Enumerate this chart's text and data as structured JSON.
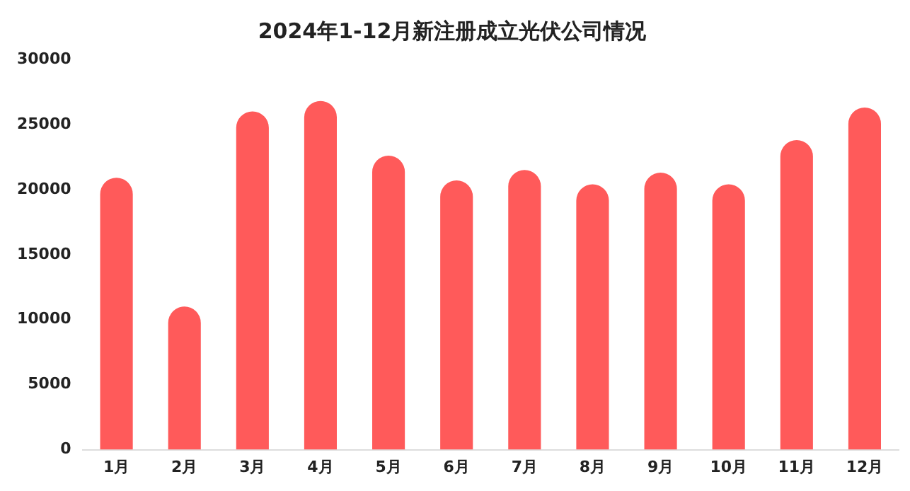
{
  "chart_data": {
    "type": "bar",
    "title": "2024年1-12月新注册成立光伏公司情况",
    "categories": [
      "1月",
      "2月",
      "3月",
      "4月",
      "5月",
      "6月",
      "7月",
      "8月",
      "9月",
      "10月",
      "11月",
      "12月"
    ],
    "values": [
      20900,
      11000,
      26000,
      26800,
      22600,
      20700,
      21500,
      20400,
      21300,
      20400,
      23800,
      26300
    ],
    "color": "#ff5a5a",
    "ylim": [
      0,
      30000
    ],
    "yticks": [
      0,
      5000,
      10000,
      15000,
      20000,
      25000,
      30000
    ],
    "grid": false,
    "legend": false
  }
}
